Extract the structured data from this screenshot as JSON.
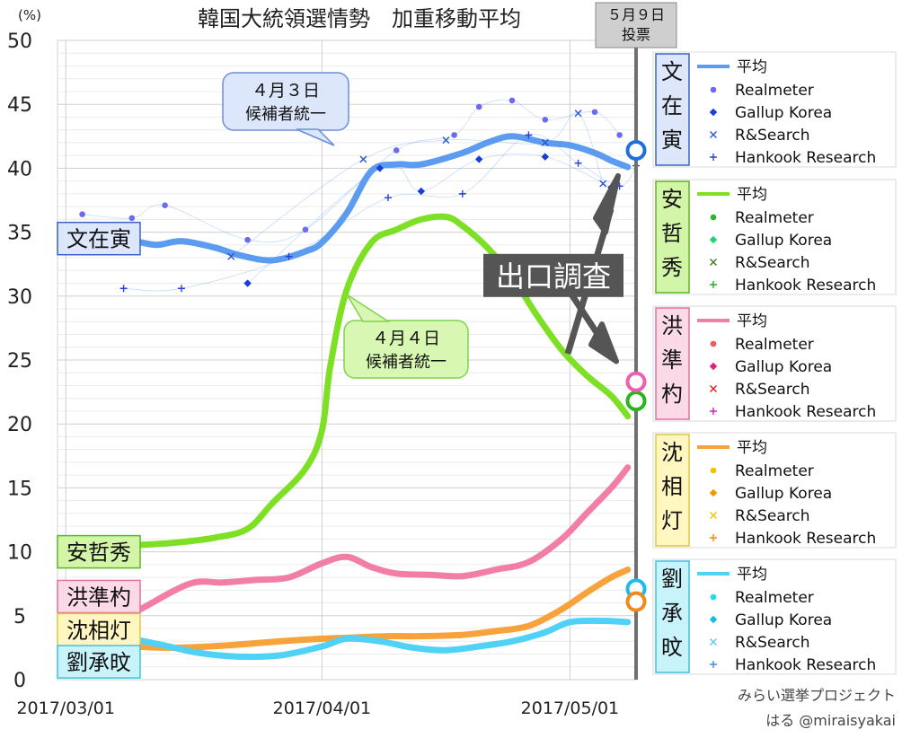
{
  "chart_data": {
    "type": "line",
    "title": "韓国大統領選情勢　加重移動平均",
    "ylabel": "(%)",
    "ylim": [
      0,
      50
    ],
    "yticks": [
      0,
      5,
      10,
      15,
      20,
      25,
      30,
      35,
      40,
      45,
      50
    ],
    "xlabels": [
      "2017/03/01",
      "2017/04/01",
      "2017/05/01"
    ],
    "xlim": [
      "2017-02-28",
      "2017-05-09"
    ],
    "grid": true,
    "election_marker": {
      "date": "2017-05-09",
      "label_line1": "５月９日",
      "label_line2": "投票"
    },
    "candidates": [
      {
        "name": "文在寅",
        "vertical": [
          "文",
          "在",
          "寅"
        ],
        "color": "#5b9bf0",
        "label_y": 34.5,
        "average": [
          [
            "2017-03-01",
            34
          ],
          [
            "2017-03-06",
            34.1
          ],
          [
            "2017-03-09",
            34.3
          ],
          [
            "2017-03-12",
            34
          ],
          [
            "2017-03-15",
            34.3
          ],
          [
            "2017-03-19",
            33.8
          ],
          [
            "2017-03-22",
            33.2
          ],
          [
            "2017-03-26",
            32.8
          ],
          [
            "2017-03-30",
            33.5
          ],
          [
            "2017-04-01",
            34.2
          ],
          [
            "2017-04-04",
            36.5
          ],
          [
            "2017-04-07",
            39.8
          ],
          [
            "2017-04-10",
            40.3
          ],
          [
            "2017-04-13",
            40.3
          ],
          [
            "2017-04-18",
            41.2
          ],
          [
            "2017-04-21",
            42
          ],
          [
            "2017-04-24",
            42.5
          ],
          [
            "2017-04-28",
            42
          ],
          [
            "2017-05-01",
            41.8
          ],
          [
            "2017-05-04",
            41.2
          ],
          [
            "2017-05-06",
            40.6
          ],
          [
            "2017-05-08",
            40.1
          ]
        ],
        "points": [
          {
            "pollster": "Realmeter",
            "data": [
              [
                "2017-03-03",
                36.4
              ],
              [
                "2017-03-09",
                36.1
              ],
              [
                "2017-03-13",
                37.1
              ],
              [
                "2017-03-23",
                34.4
              ],
              [
                "2017-03-30",
                35.2
              ],
              [
                "2017-04-10",
                41.4
              ],
              [
                "2017-04-17",
                42.6
              ],
              [
                "2017-04-20",
                44.8
              ],
              [
                "2017-04-24",
                45.3
              ],
              [
                "2017-04-28",
                43.8
              ],
              [
                "2017-05-04",
                44.4
              ],
              [
                "2017-05-07",
                42.6
              ]
            ]
          },
          {
            "pollster": "Gallup Korea",
            "data": [
              [
                "2017-03-23",
                31
              ],
              [
                "2017-04-08",
                40
              ],
              [
                "2017-04-13",
                38.2
              ],
              [
                "2017-04-20",
                40.7
              ],
              [
                "2017-04-28",
                40.9
              ],
              [
                "2017-05-06",
                38.5
              ]
            ]
          },
          {
            "pollster": "R&Search",
            "data": [
              [
                "2017-03-21",
                33.1
              ],
              [
                "2017-04-06",
                40.7
              ],
              [
                "2017-04-16",
                42.2
              ],
              [
                "2017-04-28",
                42.0
              ],
              [
                "2017-05-02",
                44.3
              ],
              [
                "2017-05-05",
                38.8
              ]
            ]
          },
          {
            "pollster": "Hankook Research",
            "data": [
              [
                "2017-03-08",
                30.6
              ],
              [
                "2017-03-15",
                30.6
              ],
              [
                "2017-03-28",
                33.1
              ],
              [
                "2017-04-09",
                37.7
              ],
              [
                "2017-04-18",
                38.0
              ],
              [
                "2017-04-26",
                42.6
              ],
              [
                "2017-05-02",
                40.4
              ],
              [
                "2017-05-07",
                38.6
              ],
              [
                "2017-05-09",
                40.2
              ]
            ]
          }
        ]
      },
      {
        "name": "安哲秀",
        "vertical": [
          "安",
          "哲",
          "秀"
        ],
        "color": "#7ee025",
        "label_y": 10,
        "average": [
          [
            "2017-03-01",
            10.1
          ],
          [
            "2017-03-05",
            10.3
          ],
          [
            "2017-03-09",
            10.5
          ],
          [
            "2017-03-14",
            10.7
          ],
          [
            "2017-03-19",
            11.1
          ],
          [
            "2017-03-23",
            11.8
          ],
          [
            "2017-03-26",
            13.8
          ],
          [
            "2017-03-30",
            16.5
          ],
          [
            "2017-04-01",
            19.5
          ],
          [
            "2017-04-02",
            24.5
          ],
          [
            "2017-04-04",
            30.5
          ],
          [
            "2017-04-07",
            34.2
          ],
          [
            "2017-04-10",
            35.2
          ],
          [
            "2017-04-13",
            36.0
          ],
          [
            "2017-04-16",
            36.2
          ],
          [
            "2017-04-18",
            35.5
          ],
          [
            "2017-04-21",
            33.8
          ],
          [
            "2017-04-24",
            31.5
          ],
          [
            "2017-04-27",
            28.5
          ],
          [
            "2017-04-30",
            25.8
          ],
          [
            "2017-05-03",
            23.8
          ],
          [
            "2017-05-06",
            22.2
          ],
          [
            "2017-05-08",
            20.6
          ]
        ]
      },
      {
        "name": "洪準杓",
        "vertical": [
          "洪",
          "準",
          "杓"
        ],
        "color": "#f27da6",
        "label_y": 6.5,
        "average": [
          [
            "2017-03-01",
            2.5
          ],
          [
            "2017-03-05",
            3.8
          ],
          [
            "2017-03-10",
            5.5
          ],
          [
            "2017-03-16",
            7.5
          ],
          [
            "2017-03-20",
            7.6
          ],
          [
            "2017-03-24",
            7.8
          ],
          [
            "2017-03-28",
            8.0
          ],
          [
            "2017-04-01",
            9.1
          ],
          [
            "2017-04-04",
            9.6
          ],
          [
            "2017-04-07",
            8.8
          ],
          [
            "2017-04-10",
            8.3
          ],
          [
            "2017-04-14",
            8.2
          ],
          [
            "2017-04-18",
            8.1
          ],
          [
            "2017-04-22",
            8.6
          ],
          [
            "2017-04-26",
            9.2
          ],
          [
            "2017-04-30",
            11.0
          ],
          [
            "2017-05-03",
            13.0
          ],
          [
            "2017-05-06",
            15.0
          ],
          [
            "2017-05-08",
            16.6
          ]
        ]
      },
      {
        "name": "沈相灯",
        "vertical": [
          "沈",
          "相",
          "灯"
        ],
        "color": "#f7a23a",
        "label_y": 3.9,
        "average": [
          [
            "2017-03-01",
            2.4
          ],
          [
            "2017-03-05",
            2.9
          ],
          [
            "2017-03-09",
            2.6
          ],
          [
            "2017-03-15",
            2.5
          ],
          [
            "2017-03-21",
            2.7
          ],
          [
            "2017-03-27",
            3.0
          ],
          [
            "2017-04-01",
            3.2
          ],
          [
            "2017-04-05",
            3.3
          ],
          [
            "2017-04-09",
            3.4
          ],
          [
            "2017-04-13",
            3.4
          ],
          [
            "2017-04-18",
            3.5
          ],
          [
            "2017-04-22",
            3.8
          ],
          [
            "2017-04-26",
            4.2
          ],
          [
            "2017-04-30",
            5.5
          ],
          [
            "2017-05-03",
            6.8
          ],
          [
            "2017-05-06",
            8.0
          ],
          [
            "2017-05-08",
            8.6
          ]
        ]
      },
      {
        "name": "劉承旼",
        "vertical": [
          "劉",
          "承",
          "旼"
        ],
        "color": "#4fd2f5",
        "label_y": 1.4,
        "average": [
          [
            "2017-03-01",
            2.3
          ],
          [
            "2017-03-04",
            2.7
          ],
          [
            "2017-03-08",
            3.2
          ],
          [
            "2017-03-12",
            2.8
          ],
          [
            "2017-03-17",
            2.1
          ],
          [
            "2017-03-22",
            1.8
          ],
          [
            "2017-03-27",
            1.9
          ],
          [
            "2017-04-01",
            2.6
          ],
          [
            "2017-04-04",
            3.2
          ],
          [
            "2017-04-08",
            3.0
          ],
          [
            "2017-04-12",
            2.5
          ],
          [
            "2017-04-16",
            2.3
          ],
          [
            "2017-04-20",
            2.6
          ],
          [
            "2017-04-24",
            3.0
          ],
          [
            "2017-04-28",
            3.7
          ],
          [
            "2017-05-01",
            4.5
          ],
          [
            "2017-05-05",
            4.6
          ],
          [
            "2017-05-08",
            4.5
          ]
        ]
      }
    ],
    "legend": {
      "average_label": "平均",
      "pollsters": [
        "Realmeter",
        "Gallup Korea",
        "R&Search",
        "Hankook Research"
      ]
    },
    "exit_poll": {
      "label": "出口調査",
      "values": [
        {
          "candidate": "文在寅",
          "value": 41.4,
          "color": "#1f6fe0"
        },
        {
          "candidate": "安哲秀",
          "value": 21.8,
          "color": "#2ab51f"
        },
        {
          "candidate": "洪準杓",
          "value": 23.3,
          "color": "#ee5fb0"
        },
        {
          "candidate": "劉承旼",
          "value": 7.1,
          "color": "#1fb8f0"
        },
        {
          "candidate": "沈相灯",
          "value": 6.1,
          "color": "#f08a1a"
        }
      ]
    },
    "annotations": [
      {
        "line1": "４月３日",
        "line2": "候補者統一",
        "target": "文在寅",
        "fill": "#dde7fb",
        "stroke": "#6a8fd6"
      },
      {
        "line1": "４月４日",
        "line2": "候補者統一",
        "target": "安哲秀",
        "fill": "#d8f7b3",
        "stroke": "#7ed44a"
      }
    ]
  },
  "credit": {
    "line1": "みらい選挙プロジェクト",
    "line2": "はる @miraisyakai"
  }
}
